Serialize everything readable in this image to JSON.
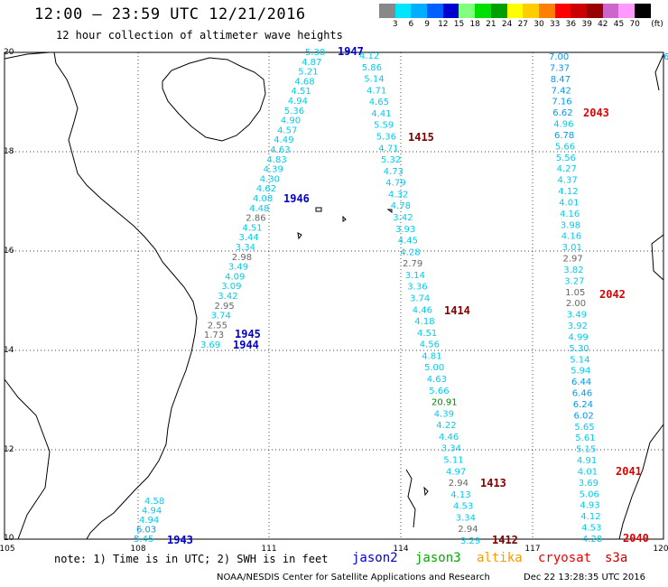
{
  "header": {
    "title": "12:00 – 23:59 UTC 12/21/2016",
    "subtitle": "12 hour collection of altimeter wave heights"
  },
  "legend": {
    "colors": [
      "#888888",
      "#00e5ff",
      "#00b0ff",
      "#0060ff",
      "#0000d0",
      "#80ff80",
      "#00e000",
      "#00a000",
      "#ffff00",
      "#ffcc00",
      "#ff8000",
      "#ff0000",
      "#cc0000",
      "#990000",
      "#cc66cc",
      "#ff99ff",
      "#000000"
    ],
    "labels": [
      "3",
      "6",
      "9",
      "12",
      "15",
      "18",
      "21",
      "24",
      "27",
      "30",
      "33",
      "36",
      "39",
      "42",
      "45",
      "70"
    ],
    "unit": "(ft)"
  },
  "axes": {
    "lon_ticks": [
      "105",
      "108",
      "111",
      "114",
      "117",
      "120"
    ],
    "lat_ticks": [
      "20",
      "18",
      "16",
      "14",
      "12",
      "10"
    ]
  },
  "passes": [
    {
      "label": "1947",
      "color": "#0000cc"
    },
    {
      "label": "1946",
      "color": "#0000cc"
    },
    {
      "label": "1945",
      "color": "#0000cc"
    },
    {
      "label": "1944",
      "color": "#0000cc"
    },
    {
      "label": "1943",
      "color": "#0000cc"
    },
    {
      "label": "1415",
      "color": "#800000"
    },
    {
      "label": "1414",
      "color": "#800000"
    },
    {
      "label": "1413",
      "color": "#800000"
    },
    {
      "label": "1412",
      "color": "#800000"
    },
    {
      "label": "2043",
      "color": "#dd0000"
    },
    {
      "label": "2042",
      "color": "#dd0000"
    },
    {
      "label": "2041",
      "color": "#dd0000"
    },
    {
      "label": "2040",
      "color": "#dd0000"
    }
  ],
  "tracks": {
    "jason2_a": [
      "5.38",
      "4.87",
      "5.21",
      "4.68",
      "4.51",
      "4.94",
      "5.36",
      "4.90",
      "4.57",
      "4.49",
      "4.63",
      "4.83",
      "4.39",
      "4.30",
      "4.62",
      "4.08",
      "4.48",
      "2.86",
      "4.51",
      "3.44",
      "3.34",
      "2.98",
      "3.49",
      "4.09",
      "3.09",
      "3.42",
      "2.95",
      "3.74",
      "2.55",
      "1.73",
      "3.69"
    ],
    "jason2_b": [
      "4.58",
      "4.94",
      "4.94",
      "6.03",
      "5.45"
    ],
    "mid": [
      "4.12",
      "5.86",
      "5.14",
      "4.71",
      "4.65",
      "4.41",
      "5.59",
      "5.36",
      "4.71",
      "5.32",
      "4.73",
      "4.79",
      "4.32",
      "4.78",
      "3.42",
      "3.93",
      "4.45",
      "4.28",
      "2.79",
      "3.14",
      "3.36",
      "3.74",
      "4.46",
      "4.18",
      "4.51",
      "4.56",
      "4.81",
      "5.00",
      "4.63",
      "5.66",
      "20.91",
      "4.39",
      "4.22",
      "4.46",
      "3.34",
      "5.11",
      "4.97",
      "2.94",
      "4.13",
      "4.53",
      "3.34",
      "2.94",
      "3.29"
    ],
    "right": [
      "7.00",
      "7.37",
      "8.47",
      "7.42",
      "7.16",
      "6.62",
      "4.96",
      "6.78",
      "5.66",
      "5.56",
      "4.27",
      "4.37",
      "4.12",
      "4.01",
      "4.16",
      "3.98",
      "4.16",
      "3.01",
      "2.97",
      "3.82",
      "3.27",
      "1.05",
      "2.00",
      "3.49",
      "3.92",
      "4.99",
      "5.30",
      "5.14",
      "5.94",
      "6.44",
      "6.46",
      "6.24",
      "6.02",
      "5.65",
      "5.61",
      "5.15",
      "4.91",
      "4.01",
      "3.69",
      "5.06",
      "4.93",
      "4.12",
      "4.53",
      "4.28"
    ],
    "edge": [
      "6"
    ]
  },
  "footer": {
    "note": "note: 1) Time is in UTC; 2) SWH is in feet",
    "satellites": [
      {
        "name": "jason2",
        "color": "#0000cc"
      },
      {
        "name": "jason3",
        "color": "#00aa00"
      },
      {
        "name": "altika",
        "color": "#ff9900"
      },
      {
        "name": "cryosat",
        "color": "#ee0000"
      },
      {
        "name": "s3a",
        "color": "#cc0000"
      }
    ],
    "credit": "NOAA/NESDIS Center for Satellite Applications and Research",
    "timestamp": "Dec 22 13:28:35 UTC 2016"
  }
}
